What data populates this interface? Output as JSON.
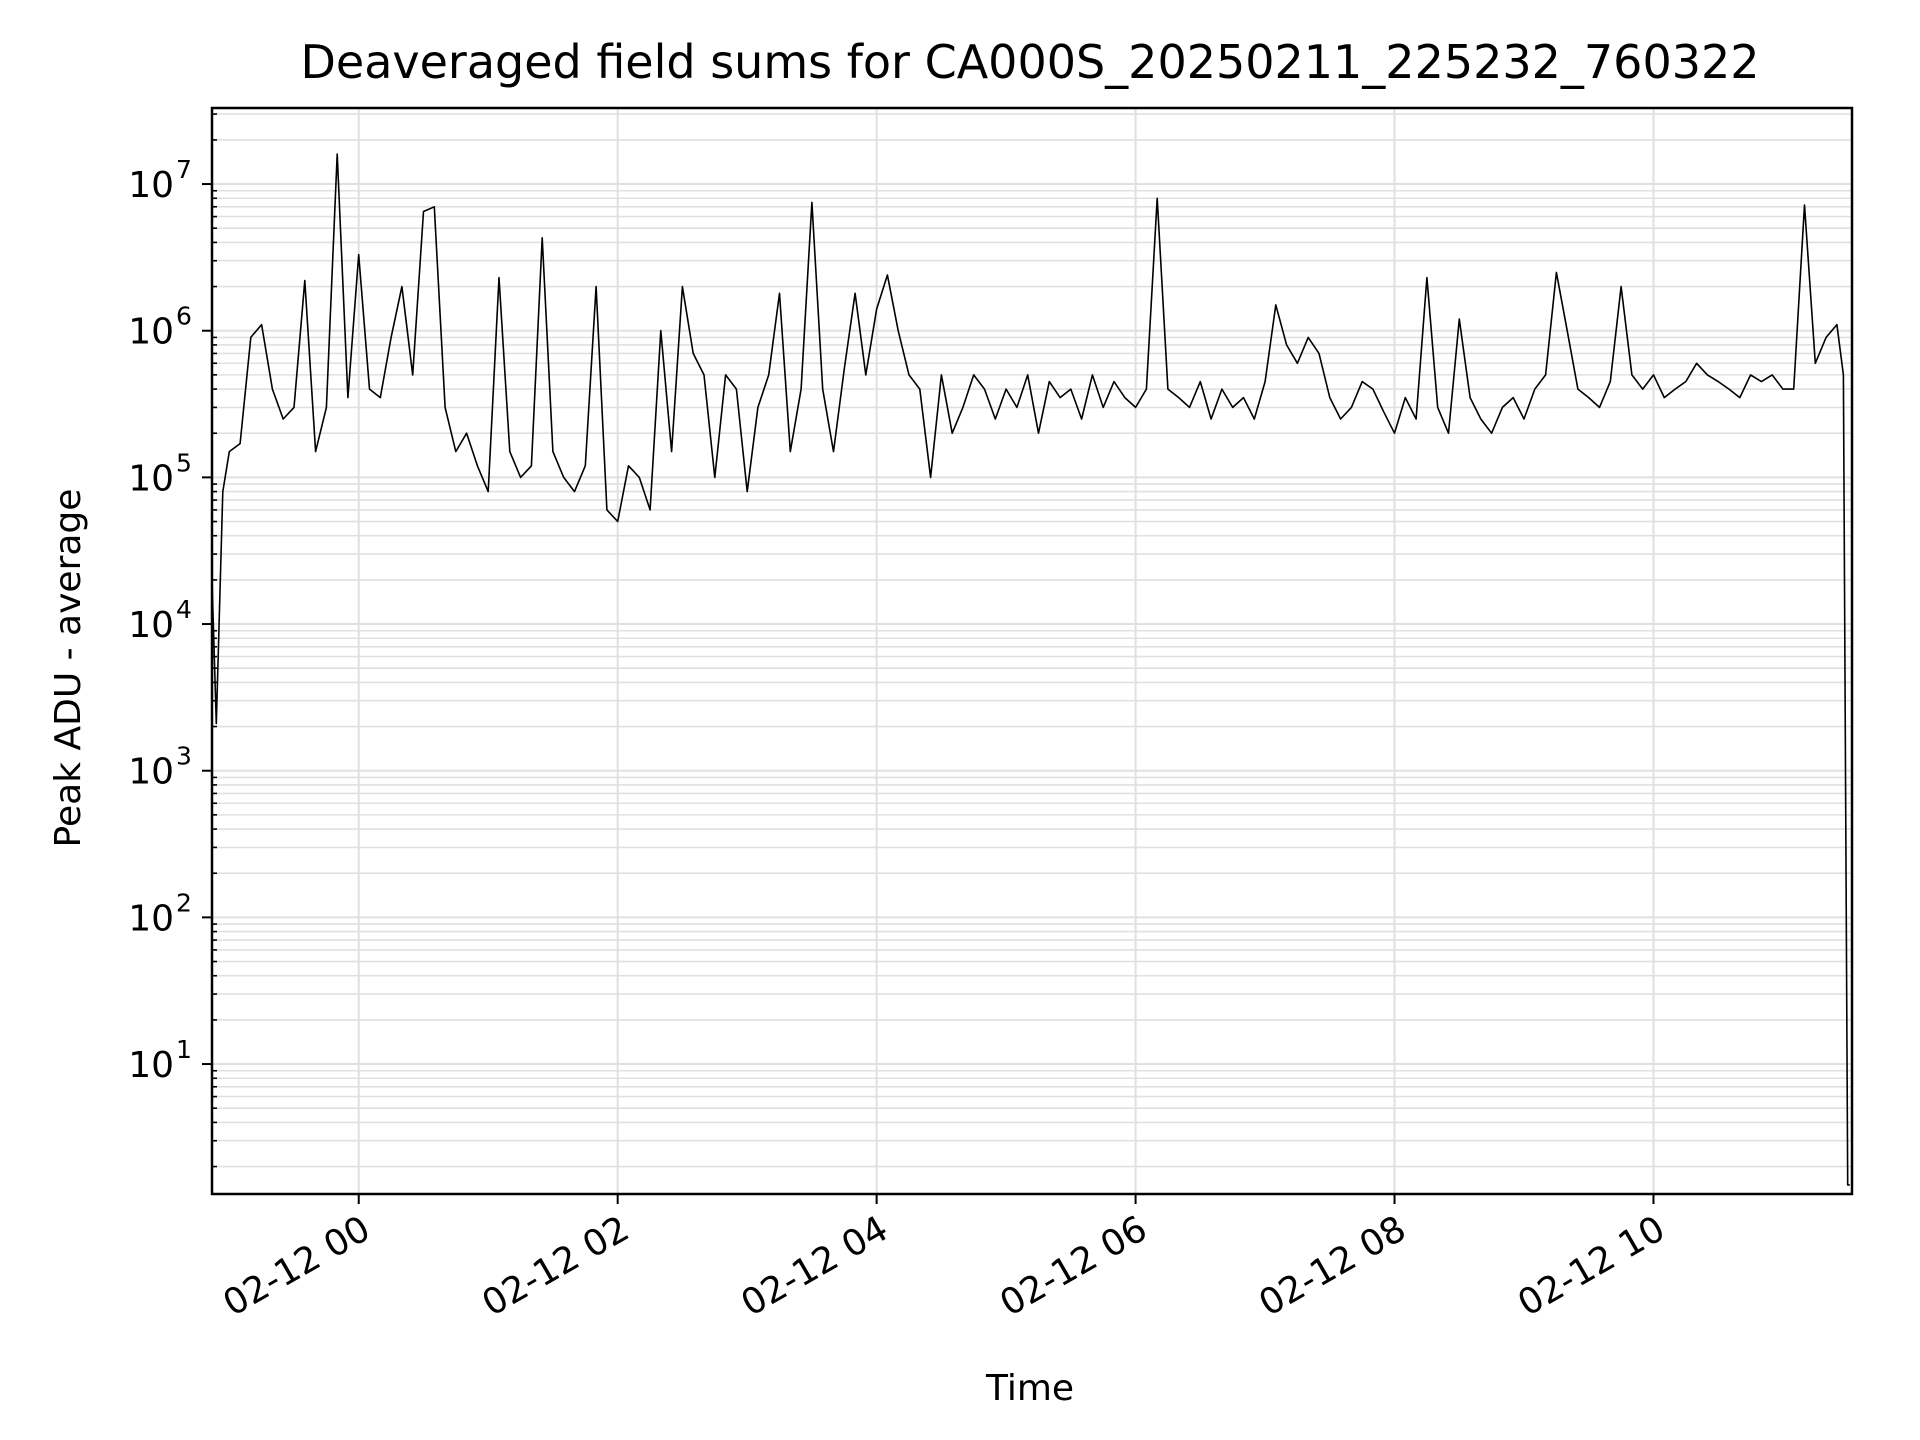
{
  "chart_data": {
    "type": "line",
    "title": "Deaveraged field sums for CA000S_20250211_225232_760322",
    "xlabel": "Time",
    "ylabel": "Peak ADU - average",
    "y_scale": "log",
    "ylim": [
      1.3,
      33000000.0
    ],
    "xlim": [
      "2025-02-11 22:52",
      "2025-02-12 11:32"
    ],
    "grid": true,
    "line_color": "#000000",
    "grid_color": "#e0e0e0",
    "x_ticks": [
      {
        "value": "2025-02-12 00:00",
        "label": "02-12 00"
      },
      {
        "value": "2025-02-12 02:00",
        "label": "02-12 02"
      },
      {
        "value": "2025-02-12 04:00",
        "label": "02-12 04"
      },
      {
        "value": "2025-02-12 06:00",
        "label": "02-12 06"
      },
      {
        "value": "2025-02-12 08:00",
        "label": "02-12 08"
      },
      {
        "value": "2025-02-12 10:00",
        "label": "02-12 10"
      }
    ],
    "y_ticks": [
      {
        "value": 10,
        "base": "10",
        "exp": "1"
      },
      {
        "value": 100,
        "base": "10",
        "exp": "2"
      },
      {
        "value": 1000,
        "base": "10",
        "exp": "3"
      },
      {
        "value": 10000,
        "base": "10",
        "exp": "4"
      },
      {
        "value": 100000,
        "base": "10",
        "exp": "5"
      },
      {
        "value": 1000000,
        "base": "10",
        "exp": "6"
      },
      {
        "value": 10000000,
        "base": "10",
        "exp": "7"
      }
    ],
    "series": [
      {
        "x": [
          "2025-02-11 22:52",
          "2025-02-11 22:54",
          "2025-02-11 22:57",
          "2025-02-11 23:00",
          "2025-02-11 23:05",
          "2025-02-11 23:10",
          "2025-02-11 23:15",
          "2025-02-11 23:20",
          "2025-02-11 23:25",
          "2025-02-11 23:30",
          "2025-02-11 23:35",
          "2025-02-11 23:40",
          "2025-02-11 23:45",
          "2025-02-11 23:50",
          "2025-02-11 23:55",
          "2025-02-12 00:00",
          "2025-02-12 00:05",
          "2025-02-12 00:10",
          "2025-02-12 00:15",
          "2025-02-12 00:20",
          "2025-02-12 00:25",
          "2025-02-12 00:30",
          "2025-02-12 00:35",
          "2025-02-12 00:40",
          "2025-02-12 00:45",
          "2025-02-12 00:50",
          "2025-02-12 00:55",
          "2025-02-12 01:00",
          "2025-02-12 01:05",
          "2025-02-12 01:10",
          "2025-02-12 01:15",
          "2025-02-12 01:20",
          "2025-02-12 01:25",
          "2025-02-12 01:30",
          "2025-02-12 01:35",
          "2025-02-12 01:40",
          "2025-02-12 01:45",
          "2025-02-12 01:50",
          "2025-02-12 01:55",
          "2025-02-12 02:00",
          "2025-02-12 02:05",
          "2025-02-12 02:10",
          "2025-02-12 02:15",
          "2025-02-12 02:20",
          "2025-02-12 02:25",
          "2025-02-12 02:30",
          "2025-02-12 02:35",
          "2025-02-12 02:40",
          "2025-02-12 02:45",
          "2025-02-12 02:50",
          "2025-02-12 02:55",
          "2025-02-12 03:00",
          "2025-02-12 03:05",
          "2025-02-12 03:10",
          "2025-02-12 03:15",
          "2025-02-12 03:20",
          "2025-02-12 03:25",
          "2025-02-12 03:30",
          "2025-02-12 03:35",
          "2025-02-12 03:40",
          "2025-02-12 03:45",
          "2025-02-12 03:50",
          "2025-02-12 03:55",
          "2025-02-12 04:00",
          "2025-02-12 04:05",
          "2025-02-12 04:10",
          "2025-02-12 04:15",
          "2025-02-12 04:20",
          "2025-02-12 04:25",
          "2025-02-12 04:30",
          "2025-02-12 04:35",
          "2025-02-12 04:40",
          "2025-02-12 04:45",
          "2025-02-12 04:50",
          "2025-02-12 04:55",
          "2025-02-12 05:00",
          "2025-02-12 05:05",
          "2025-02-12 05:10",
          "2025-02-12 05:15",
          "2025-02-12 05:20",
          "2025-02-12 05:25",
          "2025-02-12 05:30",
          "2025-02-12 05:35",
          "2025-02-12 05:40",
          "2025-02-12 05:45",
          "2025-02-12 05:50",
          "2025-02-12 05:55",
          "2025-02-12 06:00",
          "2025-02-12 06:05",
          "2025-02-12 06:10",
          "2025-02-12 06:15",
          "2025-02-12 06:20",
          "2025-02-12 06:25",
          "2025-02-12 06:30",
          "2025-02-12 06:35",
          "2025-02-12 06:40",
          "2025-02-12 06:45",
          "2025-02-12 06:50",
          "2025-02-12 06:55",
          "2025-02-12 07:00",
          "2025-02-12 07:05",
          "2025-02-12 07:10",
          "2025-02-12 07:15",
          "2025-02-12 07:20",
          "2025-02-12 07:25",
          "2025-02-12 07:30",
          "2025-02-12 07:35",
          "2025-02-12 07:40",
          "2025-02-12 07:45",
          "2025-02-12 07:50",
          "2025-02-12 07:55",
          "2025-02-12 08:00",
          "2025-02-12 08:05",
          "2025-02-12 08:10",
          "2025-02-12 08:15",
          "2025-02-12 08:20",
          "2025-02-12 08:25",
          "2025-02-12 08:30",
          "2025-02-12 08:35",
          "2025-02-12 08:40",
          "2025-02-12 08:45",
          "2025-02-12 08:50",
          "2025-02-12 08:55",
          "2025-02-12 09:00",
          "2025-02-12 09:05",
          "2025-02-12 09:10",
          "2025-02-12 09:15",
          "2025-02-12 09:20",
          "2025-02-12 09:25",
          "2025-02-12 09:30",
          "2025-02-12 09:35",
          "2025-02-12 09:40",
          "2025-02-12 09:45",
          "2025-02-12 09:50",
          "2025-02-12 09:55",
          "2025-02-12 10:00",
          "2025-02-12 10:05",
          "2025-02-12 10:10",
          "2025-02-12 10:15",
          "2025-02-12 10:20",
          "2025-02-12 10:25",
          "2025-02-12 10:30",
          "2025-02-12 10:35",
          "2025-02-12 10:40",
          "2025-02-12 10:45",
          "2025-02-12 10:50",
          "2025-02-12 10:55",
          "2025-02-12 11:00",
          "2025-02-12 11:05",
          "2025-02-12 11:10",
          "2025-02-12 11:15",
          "2025-02-12 11:20",
          "2025-02-12 11:25",
          "2025-02-12 11:28",
          "2025-02-12 11:30",
          "2025-02-12 11:31"
        ],
        "y": [
          20000,
          2100,
          80000,
          150000,
          170000,
          900000,
          1100000,
          400000,
          250000,
          300000,
          2200000,
          150000,
          300000,
          16000000,
          350000,
          3300000,
          400000,
          350000,
          900000,
          2000000,
          500000,
          6500000,
          7000000,
          300000,
          150000,
          200000,
          120000,
          80000,
          2300000,
          150000,
          100000,
          120000,
          4300000,
          150000,
          100000,
          80000,
          120000,
          2000000,
          60000,
          50000,
          120000,
          100000,
          60000,
          1000000,
          150000,
          2000000,
          700000,
          500000,
          100000,
          500000,
          400000,
          80000,
          300000,
          500000,
          1800000,
          150000,
          400000,
          7500000,
          400000,
          150000,
          550000,
          1800000,
          500000,
          1400000,
          2400000,
          1000000,
          500000,
          400000,
          100000,
          500000,
          200000,
          300000,
          500000,
          400000,
          250000,
          400000,
          300000,
          500000,
          200000,
          450000,
          350000,
          400000,
          250000,
          500000,
          300000,
          450000,
          350000,
          300000,
          400000,
          8000000,
          400000,
          350000,
          300000,
          450000,
          250000,
          400000,
          300000,
          350000,
          250000,
          450000,
          1500000,
          800000,
          600000,
          900000,
          700000,
          350000,
          250000,
          300000,
          450000,
          400000,
          280000,
          200000,
          350000,
          250000,
          2300000,
          300000,
          200000,
          1200000,
          350000,
          250000,
          200000,
          300000,
          350000,
          250000,
          400000,
          500000,
          2500000,
          1000000,
          400000,
          350000,
          300000,
          450000,
          2000000,
          500000,
          400000,
          500000,
          350000,
          400000,
          450000,
          600000,
          500000,
          450000,
          400000,
          350000,
          500000,
          450000,
          500000,
          400000,
          400000,
          7200000,
          600000,
          900000,
          1100000,
          500000,
          1.5,
          1.5
        ]
      }
    ]
  }
}
